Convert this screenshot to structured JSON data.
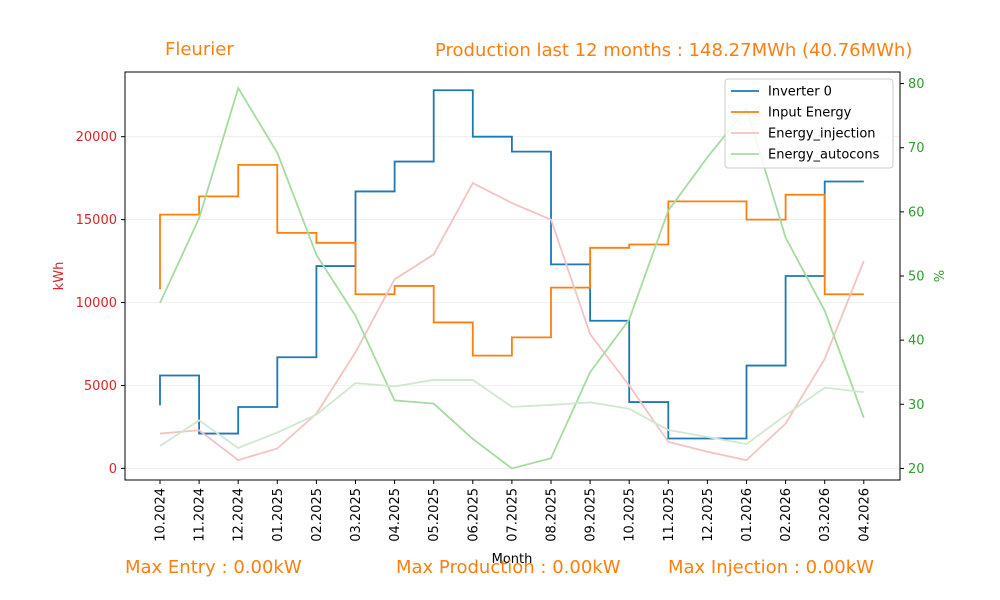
{
  "header": {
    "site": "Fleurier",
    "production": "Production last 12 months : 148.27MWh (40.76MWh)"
  },
  "footer": {
    "max_entry": "Max Entry : 0.00kW",
    "max_production": "Max Production : 0.00kW",
    "max_injection": "Max Injection : 0.00kW"
  },
  "chart_data": {
    "type": "line",
    "title": "",
    "xlabel": "Month",
    "ylabel": "kWh",
    "y2label": "%",
    "categories": [
      "10.2024",
      "11.2024",
      "12.2024",
      "01.2025",
      "02.2025",
      "03.2025",
      "04.2025",
      "05.2025",
      "06.2025",
      "07.2025",
      "08.2025",
      "09.2025",
      "10.2025",
      "11.2025",
      "12.2025",
      "01.2026",
      "02.2026",
      "03.2026",
      "04.2026"
    ],
    "ylim": [
      -700,
      23900
    ],
    "y2lim": [
      18.2,
      81.8
    ],
    "yticks": [
      0,
      5000,
      10000,
      15000,
      20000
    ],
    "y2ticks": [
      20,
      30,
      40,
      50,
      60,
      70,
      80
    ],
    "grid": true,
    "legend": "top-right",
    "series": [
      {
        "name": "Inverter 0",
        "axis": "left",
        "style": "step",
        "color": "#1f77b4",
        "values": [
          3800,
          5600,
          2100,
          3700,
          6700,
          12200,
          16700,
          18500,
          22800,
          20000,
          19100,
          12300,
          8900,
          4000,
          1800,
          1800,
          6200,
          11600,
          17300
        ]
      },
      {
        "name": "Input Energy",
        "axis": "left",
        "style": "step",
        "color": "#ff7f0e",
        "values": [
          10800,
          15300,
          16400,
          18300,
          14200,
          13600,
          10500,
          11000,
          8800,
          6800,
          7900,
          10900,
          13300,
          13500,
          16100,
          16100,
          15000,
          16500,
          10500
        ]
      },
      {
        "name": "Energy_injection",
        "axis": "left",
        "style": "line",
        "color": "#f4c2c2",
        "values": [
          2100,
          2300,
          500,
          1200,
          3300,
          7000,
          11400,
          12900,
          17200,
          16000,
          15000,
          8100,
          5000,
          1600,
          1000,
          500,
          2700,
          6600,
          12500
        ]
      },
      {
        "name": "Energy_autocons",
        "axis": "right",
        "style": "line",
        "color": "#a6dba0",
        "values": [
          45.8,
          59.0,
          79.3,
          69.2,
          53.3,
          43.8,
          30.6,
          30.1,
          24.6,
          20.0,
          21.6,
          35.0,
          43.2,
          60.2,
          68.5,
          76.1,
          56.0,
          44.6,
          27.9
        ]
      },
      {
        "name": "Energy_autocons",
        "axis": "right",
        "style": "line",
        "color": "#cfe8cf",
        "values": [
          23.5,
          27.5,
          23.2,
          25.6,
          28.4,
          33.3,
          32.8,
          33.8,
          33.8,
          29.6,
          29.9,
          30.3,
          29.3,
          26.0,
          24.9,
          23.8,
          28.3,
          32.6,
          31.9
        ]
      }
    ]
  }
}
